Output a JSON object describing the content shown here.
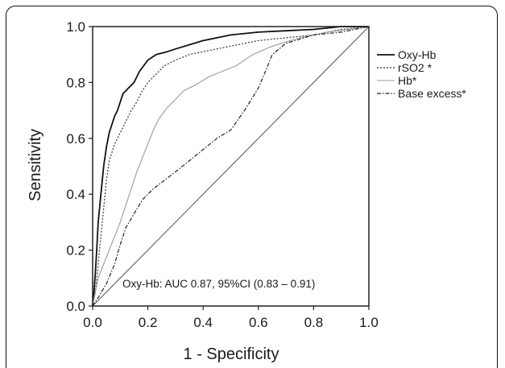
{
  "chart_data": {
    "type": "line",
    "title": "",
    "xlabel": "1 - Specificity",
    "ylabel": "Sensitivity",
    "xlim": [
      0,
      1
    ],
    "ylim": [
      0,
      1
    ],
    "x_ticks": [
      "0.0",
      "0.2",
      "0.4",
      "0.6",
      "0.8",
      "1.0"
    ],
    "y_ticks": [
      "0.0",
      "0.2",
      "0.4",
      "0.6",
      "0.8",
      "1.0"
    ],
    "grid": false,
    "legend_position": "right",
    "annotation": "Oxy-Hb: AUC 0.87, 95%CI (0.83 – 0.91)",
    "reference_line": [
      [
        0,
        0
      ],
      [
        1,
        1
      ]
    ],
    "series": [
      {
        "name": "Oxy-Hb",
        "style": "solid-dark",
        "points": [
          [
            0,
            0
          ],
          [
            0.005,
            0.05
          ],
          [
            0.01,
            0.12
          ],
          [
            0.015,
            0.2
          ],
          [
            0.02,
            0.3
          ],
          [
            0.03,
            0.4
          ],
          [
            0.04,
            0.5
          ],
          [
            0.05,
            0.57
          ],
          [
            0.06,
            0.62
          ],
          [
            0.07,
            0.65
          ],
          [
            0.08,
            0.68
          ],
          [
            0.09,
            0.7
          ],
          [
            0.1,
            0.73
          ],
          [
            0.11,
            0.76
          ],
          [
            0.12,
            0.77
          ],
          [
            0.13,
            0.78
          ],
          [
            0.15,
            0.8
          ],
          [
            0.17,
            0.84
          ],
          [
            0.2,
            0.88
          ],
          [
            0.23,
            0.9
          ],
          [
            0.27,
            0.91
          ],
          [
            0.3,
            0.92
          ],
          [
            0.35,
            0.935
          ],
          [
            0.4,
            0.95
          ],
          [
            0.5,
            0.97
          ],
          [
            0.6,
            0.98
          ],
          [
            0.7,
            0.985
          ],
          [
            0.8,
            0.99
          ],
          [
            0.9,
            1.0
          ],
          [
            1.0,
            1.0
          ]
        ]
      },
      {
        "name": "rSO2 *",
        "style": "dotted",
        "points": [
          [
            0,
            0
          ],
          [
            0.01,
            0.05
          ],
          [
            0.02,
            0.15
          ],
          [
            0.03,
            0.25
          ],
          [
            0.04,
            0.35
          ],
          [
            0.05,
            0.45
          ],
          [
            0.06,
            0.52
          ],
          [
            0.08,
            0.58
          ],
          [
            0.1,
            0.62
          ],
          [
            0.12,
            0.66
          ],
          [
            0.14,
            0.7
          ],
          [
            0.16,
            0.73
          ],
          [
            0.18,
            0.77
          ],
          [
            0.2,
            0.8
          ],
          [
            0.23,
            0.83
          ],
          [
            0.26,
            0.86
          ],
          [
            0.3,
            0.88
          ],
          [
            0.35,
            0.9
          ],
          [
            0.4,
            0.91
          ],
          [
            0.5,
            0.93
          ],
          [
            0.6,
            0.95
          ],
          [
            0.7,
            0.96
          ],
          [
            0.8,
            0.97
          ],
          [
            0.9,
            0.99
          ],
          [
            1.0,
            1.0
          ]
        ]
      },
      {
        "name": "Hb*",
        "style": "solid-light",
        "points": [
          [
            0,
            0
          ],
          [
            0.01,
            0.05
          ],
          [
            0.02,
            0.1
          ],
          [
            0.04,
            0.15
          ],
          [
            0.06,
            0.2
          ],
          [
            0.08,
            0.25
          ],
          [
            0.1,
            0.3
          ],
          [
            0.12,
            0.36
          ],
          [
            0.14,
            0.42
          ],
          [
            0.16,
            0.48
          ],
          [
            0.18,
            0.53
          ],
          [
            0.2,
            0.58
          ],
          [
            0.22,
            0.63
          ],
          [
            0.24,
            0.67
          ],
          [
            0.27,
            0.71
          ],
          [
            0.3,
            0.74
          ],
          [
            0.33,
            0.77
          ],
          [
            0.37,
            0.79
          ],
          [
            0.42,
            0.82
          ],
          [
            0.47,
            0.84
          ],
          [
            0.52,
            0.86
          ],
          [
            0.58,
            0.9
          ],
          [
            0.65,
            0.93
          ],
          [
            0.75,
            0.96
          ],
          [
            0.85,
            0.98
          ],
          [
            1.0,
            1.0
          ]
        ]
      },
      {
        "name": "Base excess*",
        "style": "dashdot",
        "points": [
          [
            0,
            0
          ],
          [
            0.02,
            0.03
          ],
          [
            0.05,
            0.08
          ],
          [
            0.08,
            0.15
          ],
          [
            0.1,
            0.22
          ],
          [
            0.12,
            0.28
          ],
          [
            0.15,
            0.33
          ],
          [
            0.18,
            0.38
          ],
          [
            0.22,
            0.42
          ],
          [
            0.26,
            0.45
          ],
          [
            0.3,
            0.48
          ],
          [
            0.35,
            0.52
          ],
          [
            0.4,
            0.56
          ],
          [
            0.45,
            0.6
          ],
          [
            0.5,
            0.63
          ],
          [
            0.55,
            0.7
          ],
          [
            0.6,
            0.78
          ],
          [
            0.63,
            0.85
          ],
          [
            0.65,
            0.9
          ],
          [
            0.7,
            0.94
          ],
          [
            0.8,
            0.97
          ],
          [
            0.9,
            0.98
          ],
          [
            1.0,
            1.0
          ]
        ]
      }
    ]
  }
}
